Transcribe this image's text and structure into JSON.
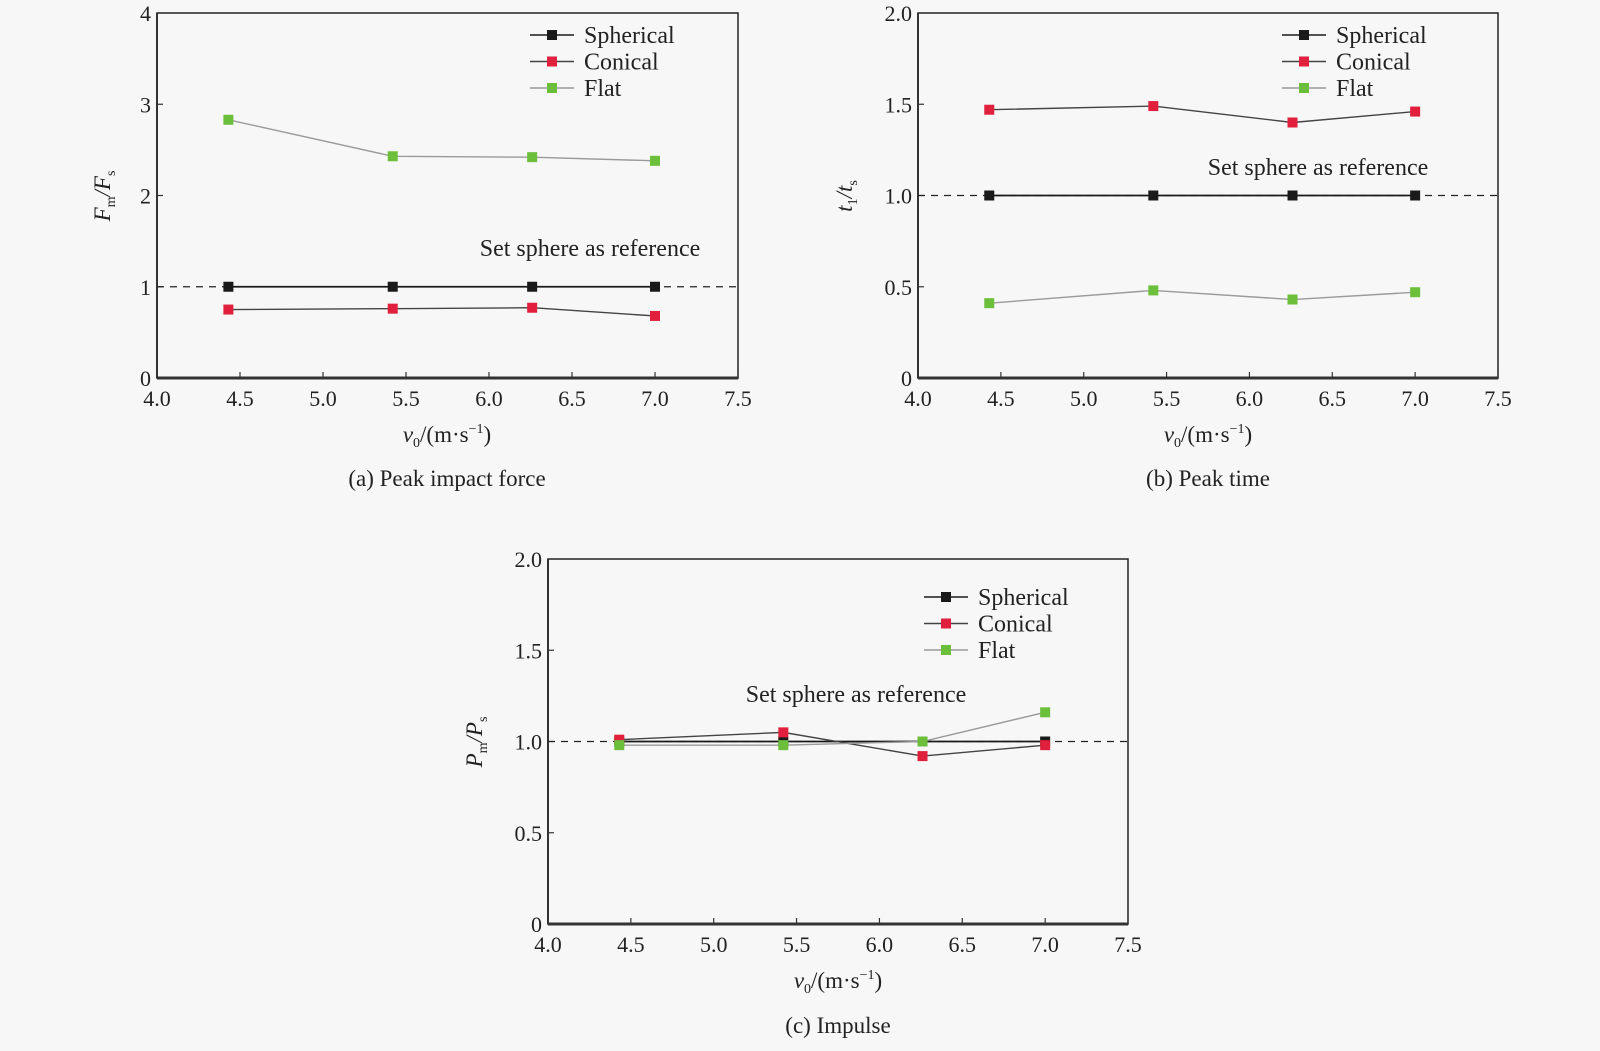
{
  "chart_data": [
    {
      "type": "line",
      "caption": "(a) Peak impact force",
      "xlabel": {
        "base": "v",
        "sub": "0",
        "rest": "/(m·s",
        "sup": "−1",
        "close": ")"
      },
      "ylabel": {
        "base1": "F",
        "sub1": "m",
        "slash": "/",
        "base2": "F",
        "sub2": "s"
      },
      "xlim": [
        4.0,
        7.5
      ],
      "ylim": [
        0,
        4
      ],
      "xticks": [
        "4.0",
        "4.5",
        "5.0",
        "5.5",
        "6.0",
        "6.5",
        "7.0",
        "7.5"
      ],
      "yticks": [
        "0",
        "1",
        "2",
        "3",
        "4"
      ],
      "reference_line": 1,
      "annotation": "Set sphere as reference",
      "legend_position": "top-right",
      "x": [
        4.43,
        5.42,
        6.26,
        7.0
      ],
      "series": [
        {
          "name": "Spherical",
          "color": "#1a1a1a",
          "line_color": "#1a1a1a",
          "values": [
            1.0,
            1.0,
            1.0,
            1.0
          ]
        },
        {
          "name": "Conical",
          "color": "#e0203c",
          "line_color": "#444444",
          "values": [
            0.75,
            0.76,
            0.77,
            0.68
          ]
        },
        {
          "name": "Flat",
          "color": "#6bbf3a",
          "line_color": "#9a9a9a",
          "values": [
            2.83,
            2.43,
            2.42,
            2.38
          ]
        }
      ]
    },
    {
      "type": "line",
      "caption": "(b) Peak time",
      "xlabel": {
        "base": "v",
        "sub": "0",
        "rest": "/(m·s",
        "sup": "−1",
        "close": ")"
      },
      "ylabel": {
        "base1": "t",
        "sub1": "1",
        "slash": "/",
        "base2": "t",
        "sub2": "s"
      },
      "xlim": [
        4.0,
        7.5
      ],
      "ylim": [
        0,
        2.0
      ],
      "xticks": [
        "4.0",
        "4.5",
        "5.0",
        "5.5",
        "6.0",
        "6.5",
        "7.0",
        "7.5"
      ],
      "yticks": [
        "0",
        "0.5",
        "1.0",
        "1.5",
        "2.0"
      ],
      "reference_line": 1,
      "annotation": "Set sphere as reference",
      "legend_position": "top-right",
      "x": [
        4.43,
        5.42,
        6.26,
        7.0
      ],
      "series": [
        {
          "name": "Spherical",
          "color": "#1a1a1a",
          "line_color": "#1a1a1a",
          "values": [
            1.0,
            1.0,
            1.0,
            1.0
          ]
        },
        {
          "name": "Conical",
          "color": "#e0203c",
          "line_color": "#444444",
          "values": [
            1.47,
            1.49,
            1.4,
            1.46
          ]
        },
        {
          "name": "Flat",
          "color": "#6bbf3a",
          "line_color": "#9a9a9a",
          "values": [
            0.41,
            0.48,
            0.43,
            0.47
          ]
        }
      ]
    },
    {
      "type": "line",
      "caption": "(c) Impulse",
      "xlabel": {
        "base": "v",
        "sub": "0",
        "rest": "/(m·s",
        "sup": "−1",
        "close": ")"
      },
      "ylabel": {
        "base1": "P",
        "sub1": "m",
        "slash": "/",
        "base2": "P",
        "sub2": "s"
      },
      "xlim": [
        4.0,
        7.5
      ],
      "ylim": [
        0,
        2.0
      ],
      "xticks": [
        "4.0",
        "4.5",
        "5.0",
        "5.5",
        "6.0",
        "6.5",
        "7.0",
        "7.5"
      ],
      "yticks": [
        "0",
        "0.5",
        "1.0",
        "1.5",
        "2.0"
      ],
      "reference_line": 1,
      "annotation": "Set sphere as reference",
      "legend_position": "top-right",
      "x": [
        4.43,
        5.42,
        6.26,
        7.0
      ],
      "series": [
        {
          "name": "Spherical",
          "color": "#1a1a1a",
          "line_color": "#1a1a1a",
          "values": [
            1.0,
            1.0,
            1.0,
            1.0
          ]
        },
        {
          "name": "Conical",
          "color": "#e0203c",
          "line_color": "#444444",
          "values": [
            1.01,
            1.05,
            0.92,
            0.98
          ]
        },
        {
          "name": "Flat",
          "color": "#6bbf3a",
          "line_color": "#9a9a9a",
          "values": [
            0.98,
            0.98,
            1.0,
            1.16
          ]
        }
      ]
    }
  ]
}
